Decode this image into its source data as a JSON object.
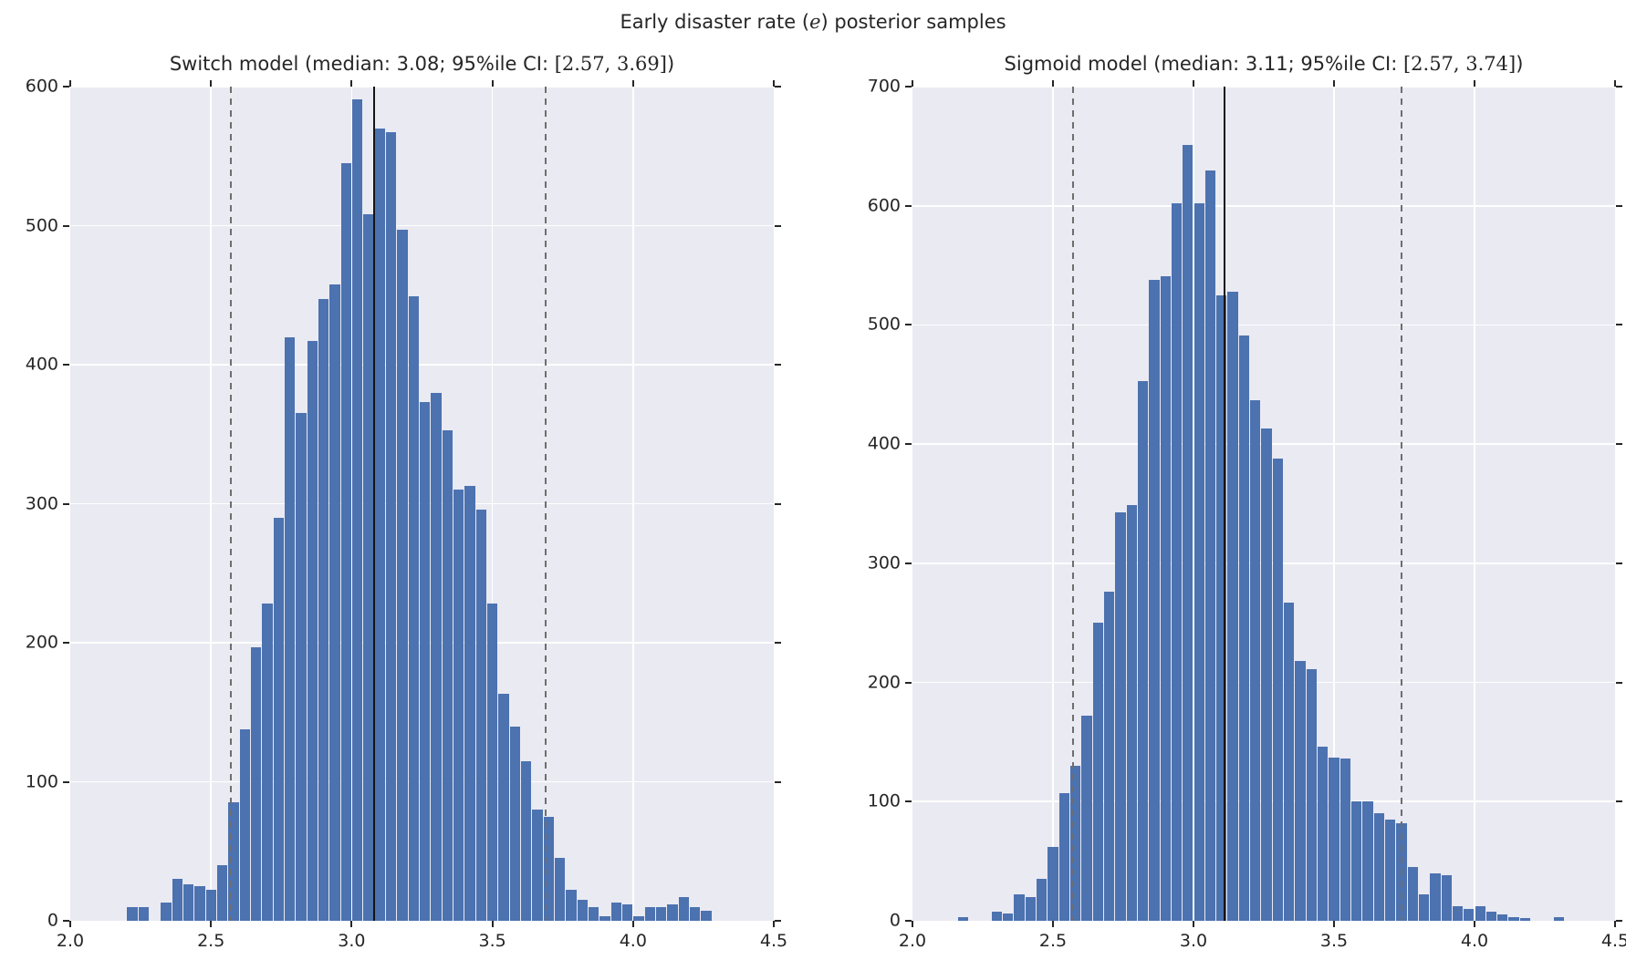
{
  "figure": {
    "suptitle_prefix": "Early disaster rate (",
    "suptitle_var": "e",
    "suptitle_suffix": ") posterior samples"
  },
  "colors": {
    "figure_background": "#ffffff",
    "axes_background": "#eaeaf2",
    "grid": "#ffffff",
    "bar": "#4c72b0",
    "median_line": "#141414",
    "ci_line": "#6e6e6e",
    "text": "#262626"
  },
  "chart_data": [
    {
      "type": "histogram",
      "model": "Switch model",
      "title_prefix": "Switch model (median: 3.08; 95%ile CI: ",
      "title_math": "[2.57, 3.69]",
      "title_suffix": ")",
      "median": 3.08,
      "ci": [
        2.57,
        3.69
      ],
      "xlim": [
        2.0,
        4.5
      ],
      "ylim": [
        0,
        600
      ],
      "xticks": [
        2.0,
        2.5,
        3.0,
        3.5,
        4.0,
        4.5
      ],
      "xtick_labels": [
        "2.0",
        "2.5",
        "3.0",
        "3.5",
        "4.0",
        "4.5"
      ],
      "yticks": [
        0,
        100,
        200,
        300,
        400,
        500,
        600
      ],
      "ytick_labels": [
        "0",
        "100",
        "200",
        "300",
        "400",
        "500",
        "600"
      ],
      "bin_start": 2.2,
      "bin_width": 0.04,
      "counts": [
        10,
        10,
        0,
        13,
        30,
        26,
        25,
        22,
        40,
        85,
        138,
        197,
        228,
        290,
        420,
        365,
        417,
        447,
        458,
        545,
        591,
        508,
        570,
        567,
        497,
        449,
        373,
        380,
        353,
        310,
        313,
        296,
        228,
        163,
        140,
        115,
        80,
        75,
        45,
        22,
        15,
        10,
        3,
        13,
        12,
        3,
        10,
        10,
        12,
        17,
        10,
        7
      ]
    },
    {
      "type": "histogram",
      "model": "Sigmoid model",
      "title_prefix": "Sigmoid model (median: 3.11; 95%ile CI: ",
      "title_math": "[2.57, 3.74]",
      "title_suffix": ")",
      "median": 3.11,
      "ci": [
        2.57,
        3.74
      ],
      "xlim": [
        2.0,
        4.5
      ],
      "ylim": [
        0,
        700
      ],
      "xticks": [
        2.0,
        2.5,
        3.0,
        3.5,
        4.0,
        4.5
      ],
      "xtick_labels": [
        "2.0",
        "2.5",
        "3.0",
        "3.5",
        "4.0",
        "4.5"
      ],
      "yticks": [
        0,
        100,
        200,
        300,
        400,
        500,
        600,
        700
      ],
      "ytick_labels": [
        "0",
        "100",
        "200",
        "300",
        "400",
        "500",
        "600",
        "700"
      ],
      "bin_start": 2.16,
      "bin_width": 0.04,
      "counts": [
        3,
        0,
        0,
        8,
        6,
        22,
        20,
        35,
        62,
        107,
        130,
        172,
        250,
        276,
        343,
        349,
        453,
        538,
        541,
        602,
        651,
        602,
        630,
        525,
        528,
        491,
        437,
        413,
        388,
        267,
        218,
        211,
        146,
        137,
        136,
        100,
        100,
        90,
        85,
        82,
        45,
        22,
        40,
        38,
        12,
        10,
        12,
        8,
        5,
        3,
        2,
        0,
        0,
        3
      ]
    }
  ]
}
